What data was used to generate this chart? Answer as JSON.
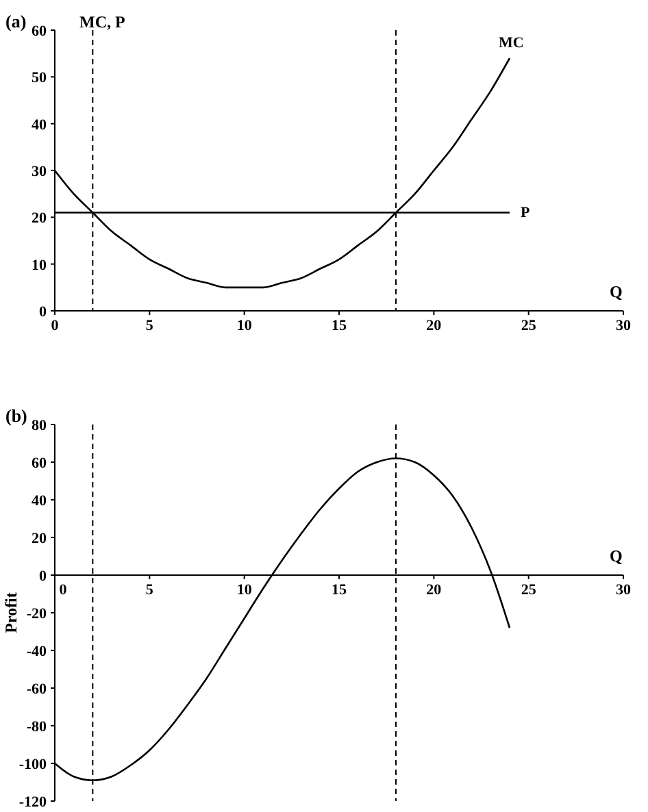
{
  "chart_data": [
    {
      "type": "line",
      "title": "(a)",
      "xlabel": "Q",
      "ylabel": "MC, P",
      "xlim": [
        0,
        30
      ],
      "ylim": [
        0,
        60
      ],
      "xticks": [
        0,
        5,
        10,
        15,
        20,
        25,
        30
      ],
      "yticks": [
        0,
        10,
        20,
        30,
        40,
        50,
        60
      ],
      "marker": "none",
      "series": [
        {
          "name": "MC",
          "color": "#000000",
          "x": [
            0,
            1,
            2,
            3,
            4,
            5,
            6,
            7,
            8,
            9,
            10,
            11,
            12,
            13,
            14,
            15,
            16,
            17,
            18,
            19,
            20,
            21,
            22,
            23,
            24
          ],
          "values": [
            30,
            25,
            21,
            17,
            14,
            11,
            9,
            7,
            6,
            5,
            5,
            5,
            6,
            7,
            9,
            11,
            14,
            17,
            21,
            25,
            30,
            35,
            41,
            47,
            54
          ]
        },
        {
          "name": "P",
          "color": "#000000",
          "x": [
            0,
            24
          ],
          "values": [
            21,
            21
          ]
        }
      ],
      "ref_lines": [
        {
          "axis": "x",
          "value": 2,
          "line_style": "dashed",
          "color": "#000000"
        },
        {
          "axis": "x",
          "value": 18,
          "line_style": "dashed",
          "color": "#000000"
        }
      ]
    },
    {
      "type": "line",
      "title": "(b)",
      "xlabel": "Q",
      "ylabel": "Profit",
      "xlim": [
        0,
        30
      ],
      "ylim": [
        -120,
        80
      ],
      "xticks": [
        0,
        5,
        10,
        15,
        20,
        25,
        30
      ],
      "yticks": [
        -120,
        -100,
        -80,
        -60,
        -40,
        -20,
        0,
        20,
        40,
        60,
        80
      ],
      "marker": "none",
      "series": [
        {
          "color": "#000000",
          "x": [
            0,
            1,
            2,
            3,
            4,
            5,
            6,
            7,
            8,
            9,
            10,
            11,
            12,
            13,
            14,
            15,
            16,
            17,
            18,
            19,
            20,
            21,
            22,
            23,
            24
          ],
          "values": [
            -100,
            -107,
            -109,
            -107,
            -101,
            -93,
            -82,
            -69,
            -55,
            -39,
            -23,
            -7,
            8,
            22,
            35,
            46,
            55,
            60,
            62,
            60,
            53,
            42,
            25,
            2,
            -28
          ]
        }
      ],
      "ref_lines": [
        {
          "axis": "x",
          "value": 2,
          "line_style": "dashed",
          "color": "#000000"
        },
        {
          "axis": "x",
          "value": 18,
          "line_style": "dashed",
          "color": "#000000"
        }
      ]
    }
  ]
}
